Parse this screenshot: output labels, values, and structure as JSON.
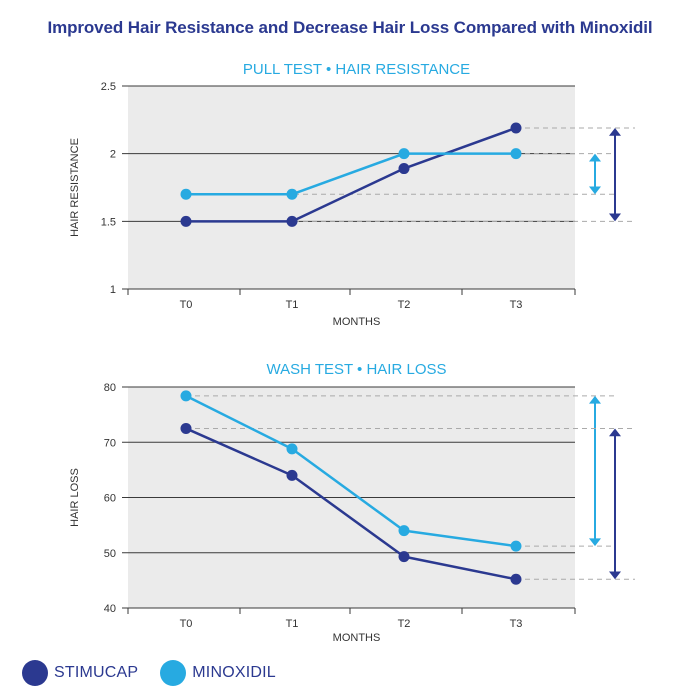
{
  "title": "Improved Hair Resistance and Decrease Hair Loss Compared with Minoxidil",
  "colors": {
    "stimucap": "#2b3990",
    "minoxidil": "#27aae1",
    "plot_bg": "#ebebeb",
    "grid": "#3a3a3a",
    "guide": "#aaaaaa"
  },
  "legend": [
    {
      "label": "STIMUCAP",
      "color": "#2b3990"
    },
    {
      "label": "MINOXIDIL",
      "color": "#27aae1"
    }
  ],
  "chart_data": [
    {
      "type": "line",
      "title": "PULL TEST  •  HAIR RESISTANCE",
      "xlabel": "MONTHS",
      "ylabel": "HAIR RESISTANCE",
      "categories": [
        "T0",
        "T1",
        "T2",
        "T3"
      ],
      "ylim": [
        1,
        2.5
      ],
      "yticks": [
        "1",
        "1.5",
        "2",
        "2.5"
      ],
      "ytick_values": [
        1,
        1.5,
        2,
        2.5
      ],
      "series": [
        {
          "name": "STIMUCAP",
          "values": [
            1.5,
            1.5,
            1.89,
            2.19
          ]
        },
        {
          "name": "MINOXIDIL",
          "values": [
            1.7,
            1.7,
            2.0,
            2.0
          ]
        }
      ],
      "annotation": "difference arrows comparing T0 to T3 improvement for each series"
    },
    {
      "type": "line",
      "title": "WASH TEST  •  HAIR LOSS",
      "xlabel": "MONTHS",
      "ylabel": "HAIR LOSS",
      "categories": [
        "T0",
        "T1",
        "T2",
        "T3"
      ],
      "ylim": [
        40,
        80
      ],
      "yticks": [
        "40",
        "50",
        "60",
        "70",
        "80"
      ],
      "ytick_values": [
        40,
        50,
        60,
        70,
        80
      ],
      "series": [
        {
          "name": "STIMUCAP",
          "values": [
            72.5,
            64,
            49.3,
            45.2
          ]
        },
        {
          "name": "MINOXIDIL",
          "values": [
            78.4,
            68.8,
            54,
            51.2
          ]
        }
      ],
      "annotation": "difference arrows comparing T0 to T3 decrease for each series"
    }
  ]
}
